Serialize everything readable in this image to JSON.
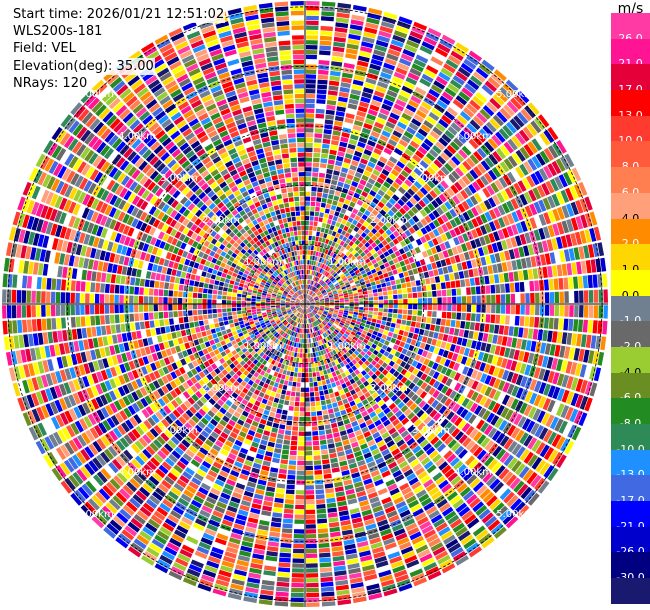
{
  "header": {
    "start_time": "Start time: 2026/01/21 12:51:02",
    "instrument": "WLS200s-181",
    "field": "Field: VEL",
    "elevation": "Elevation(deg): 35.00",
    "nrays": "NRays: 120"
  },
  "chart_data": {
    "type": "heatmap",
    "projection": "polar",
    "field": "VEL",
    "units": "m/s",
    "n_rays": 120,
    "elevation_deg": 35.0,
    "range_rings_km": [
      1,
      2,
      3,
      4,
      5
    ],
    "range_ring_labels": [
      "1.00km",
      "2.00km",
      "3.00km",
      "4.00km",
      "5.00km"
    ],
    "max_range_km": 5.1,
    "pattern": "noise-dominated random velocities across all range gates",
    "colorbar": {
      "unit_label": "m/s",
      "ticks": [
        "26.0",
        "21.0",
        "17.0",
        "13.0",
        "10.0",
        "8.0",
        "6.0",
        "4.0",
        "2.0",
        "1.0",
        "0.0",
        "-1.0",
        "-2.0",
        "-4.0",
        "-6.0",
        "-8.0",
        "-10.0",
        "-13.0",
        "-17.0",
        "-21.0",
        "-26.0",
        "-30.0"
      ],
      "colors": [
        "#ff3aa5",
        "#ff1493",
        "#e6003a",
        "#ff0000",
        "#ff3b2f",
        "#ff5a3c",
        "#ff7f50",
        "#ffa07a",
        "#ff8c00",
        "#ffd700",
        "#ffff00",
        "#708090",
        "#696969",
        "#9acd32",
        "#6b8e23",
        "#228b22",
        "#2e8b57",
        "#1e90ff",
        "#4169e1",
        "#0000ff",
        "#0000cd",
        "#000080",
        "#191970"
      ]
    }
  }
}
